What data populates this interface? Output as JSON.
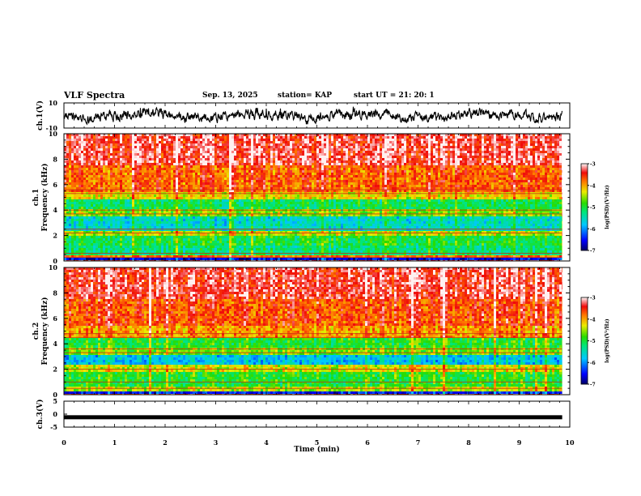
{
  "header": {
    "title": "VLF Spectra",
    "date": "Sep. 13, 2025",
    "station": "station= KAP",
    "start": "start UT =  21: 20: 1"
  },
  "chart_data": [
    {
      "type": "line",
      "panel": "ch1-waveform",
      "ylabel": "ch.1(V)",
      "ylim": [
        -10,
        10
      ],
      "yticks": [
        "10",
        "-10"
      ],
      "xlim": [
        0,
        10
      ],
      "description_values": {
        "mean": 0,
        "amplitude_min": -7,
        "amplitude_max": 7
      },
      "color": "#000000"
    },
    {
      "type": "heatmap",
      "panel": "ch1-spectrogram",
      "ylabel_line1": "ch.1",
      "ylabel_line2": "Frequency (kHz)",
      "ylim": [
        0,
        10
      ],
      "yticks": [
        "0",
        "2",
        "4",
        "6",
        "8",
        "10"
      ],
      "xlim": [
        0,
        10
      ],
      "band_levels": [
        {
          "f0": 0.0,
          "f1": 0.2,
          "level": -6.6
        },
        {
          "f0": 0.2,
          "f1": 0.5,
          "level": -3.8
        },
        {
          "f0": 0.5,
          "f1": 1.2,
          "level": -5.2
        },
        {
          "f0": 1.2,
          "f1": 2.0,
          "level": -5.0
        },
        {
          "f0": 2.0,
          "f1": 2.4,
          "level": -4.4
        },
        {
          "f0": 2.4,
          "f1": 3.5,
          "level": -5.5
        },
        {
          "f0": 3.5,
          "f1": 4.1,
          "level": -4.6
        },
        {
          "f0": 4.1,
          "f1": 4.8,
          "level": -5.1
        },
        {
          "f0": 4.8,
          "f1": 5.5,
          "level": -4.2
        },
        {
          "f0": 5.5,
          "f1": 7.5,
          "level": -3.7
        },
        {
          "f0": 7.5,
          "f1": 10.0,
          "level": -3.3
        }
      ],
      "lines_khz": [
        0.3,
        0.6,
        2.2,
        2.5,
        3.7,
        4.0,
        5.3,
        5.6
      ]
    },
    {
      "type": "heatmap",
      "panel": "ch2-spectrogram",
      "ylabel_line1": "ch.2",
      "ylabel_line2": "Frequency (kHz)",
      "ylim": [
        0,
        10
      ],
      "yticks": [
        "0",
        "2",
        "4",
        "6",
        "8",
        "10"
      ],
      "xlim": [
        0,
        10
      ],
      "band_levels": [
        {
          "f0": 0.0,
          "f1": 0.3,
          "level": -6.4
        },
        {
          "f0": 0.3,
          "f1": 0.7,
          "level": -4.4
        },
        {
          "f0": 0.7,
          "f1": 1.7,
          "level": -4.9
        },
        {
          "f0": 1.7,
          "f1": 2.3,
          "level": -4.3
        },
        {
          "f0": 2.3,
          "f1": 3.1,
          "level": -5.7
        },
        {
          "f0": 3.1,
          "f1": 3.7,
          "level": -4.6
        },
        {
          "f0": 3.7,
          "f1": 4.4,
          "level": -4.9
        },
        {
          "f0": 4.4,
          "f1": 5.5,
          "level": -3.9
        },
        {
          "f0": 5.5,
          "f1": 7.5,
          "level": -3.6
        },
        {
          "f0": 7.5,
          "f1": 10.0,
          "level": -3.3
        }
      ],
      "lines_khz": [
        0.5,
        1.0,
        2.0,
        3.3,
        3.6,
        4.5,
        4.8
      ]
    },
    {
      "type": "line",
      "panel": "ch3-signal",
      "ylabel": "ch.3(V)",
      "ylim": [
        -5,
        5
      ],
      "yticks": [
        "5",
        "0",
        "-5"
      ],
      "xlim": [
        0,
        10
      ],
      "level": -1.2,
      "color": "#000000"
    }
  ],
  "colorbar": {
    "label": "log(PSD)(V²/Hz)",
    "range": [
      -7,
      -3
    ],
    "ticks": [
      "-3",
      "-4",
      "-5",
      "-6",
      "-7"
    ]
  },
  "xaxis": {
    "label": "Time (min)",
    "range": [
      0,
      10
    ],
    "ticks": [
      "0",
      "1",
      "2",
      "3",
      "4",
      "5",
      "6",
      "7",
      "8",
      "9",
      "10"
    ],
    "data_end": 9.85
  }
}
